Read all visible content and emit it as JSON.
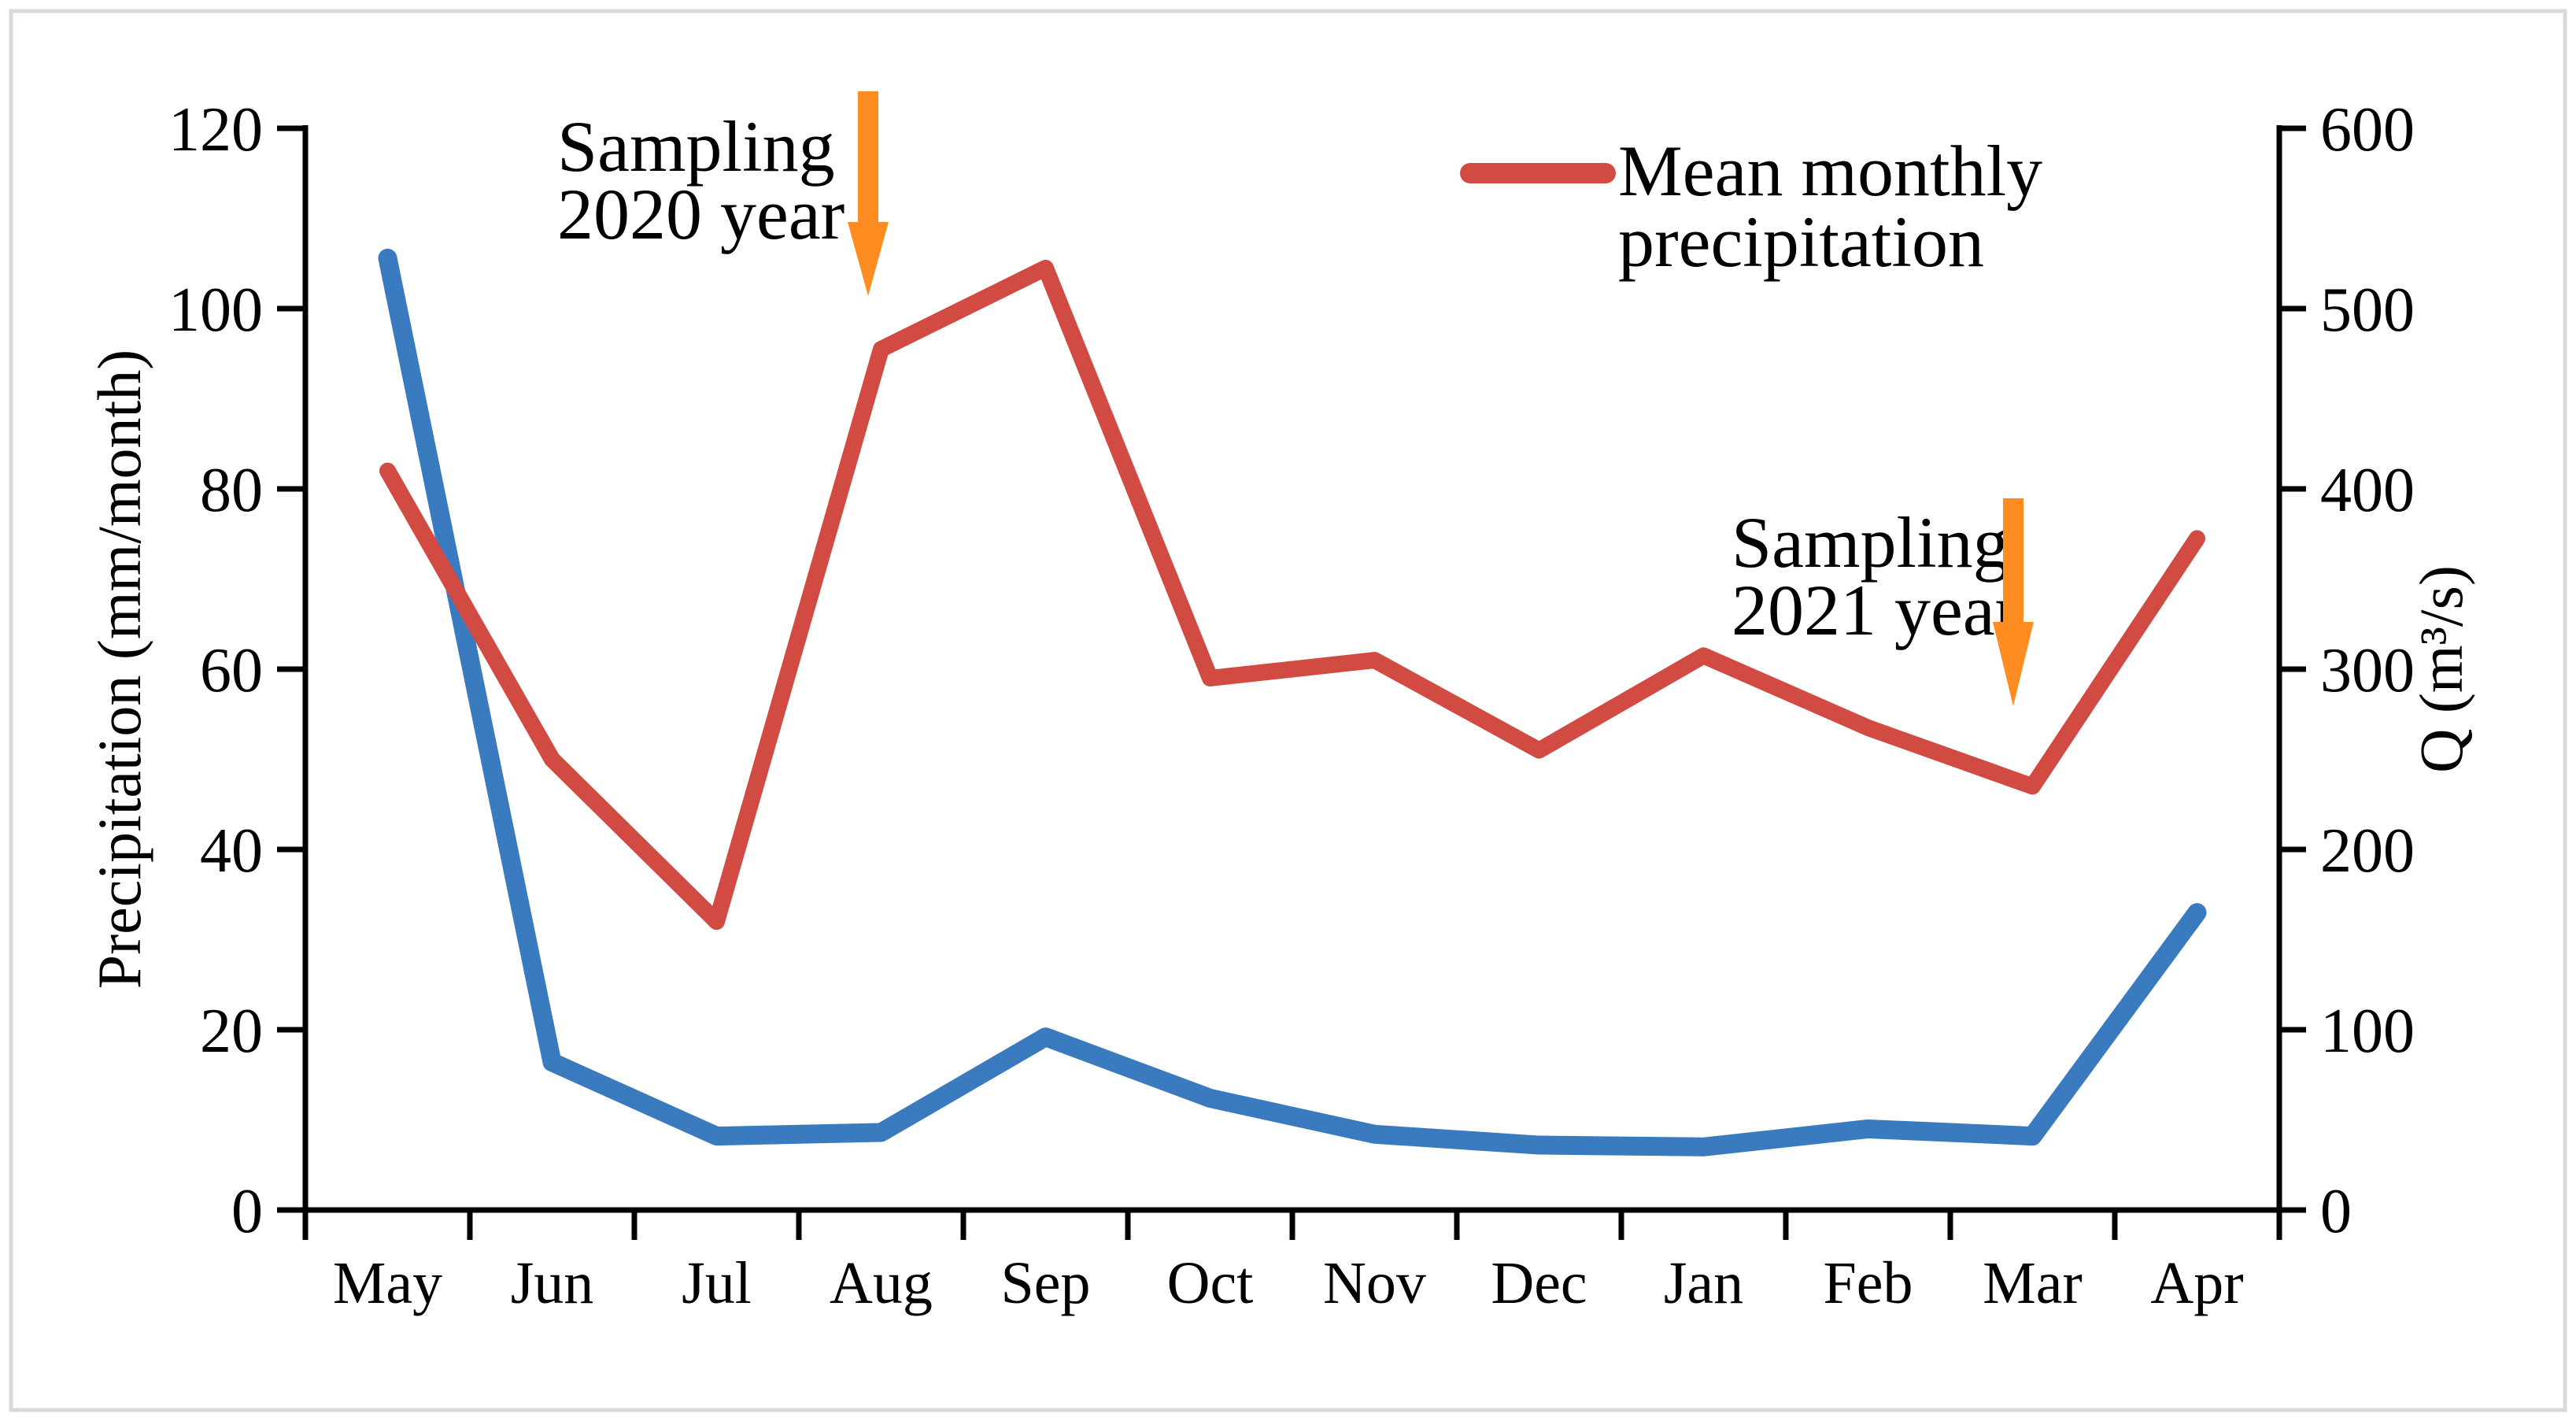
{
  "figure": {
    "background": "#ffffff",
    "border_color": "#d9d9d9"
  },
  "chart_data": {
    "type": "line",
    "categories": [
      "May",
      "Jun",
      "Jul",
      "Aug",
      "Sep",
      "Oct",
      "Nov",
      "Dec",
      "Jan",
      "Feb",
      "Mar",
      "Apr"
    ],
    "series": [
      {
        "name": "Mean monthly precipitation",
        "axis": "left",
        "color": "#d14b42",
        "line_width": 21,
        "values": [
          82,
          50,
          32,
          95.5,
          104.5,
          59,
          61,
          51,
          61.5,
          53.5,
          47,
          74.5
        ]
      },
      {
        "name": "Q",
        "axis": "right",
        "color": "#3a7abf",
        "line_width": 24,
        "values": [
          528,
          82,
          41,
          43,
          96,
          62,
          42,
          36,
          35,
          45,
          41,
          165
        ]
      }
    ],
    "left_axis": {
      "label": "Precipitation (mm/month)",
      "min": 0,
      "max": 120,
      "ticks": [
        0,
        20,
        40,
        60,
        80,
        100,
        120
      ]
    },
    "right_axis": {
      "label": "Q (m³/s)",
      "min": 0,
      "max": 600,
      "ticks": [
        0,
        100,
        200,
        300,
        400,
        500,
        600
      ]
    },
    "xlabel": "",
    "title": "",
    "grid": false,
    "legend": {
      "position": "top-right",
      "entries": [
        {
          "label_lines": [
            "Mean monthly",
            "precipitation"
          ],
          "series": "Mean monthly precipitation"
        }
      ]
    }
  },
  "annotations": [
    {
      "lines": [
        "Sampling",
        "2020 year"
      ],
      "target_month": "Aug",
      "arrow_color": "#ff8c21"
    },
    {
      "lines": [
        "Sampling",
        "2021 year"
      ],
      "target_month": "Mar",
      "arrow_color": "#ff8c21"
    }
  ]
}
